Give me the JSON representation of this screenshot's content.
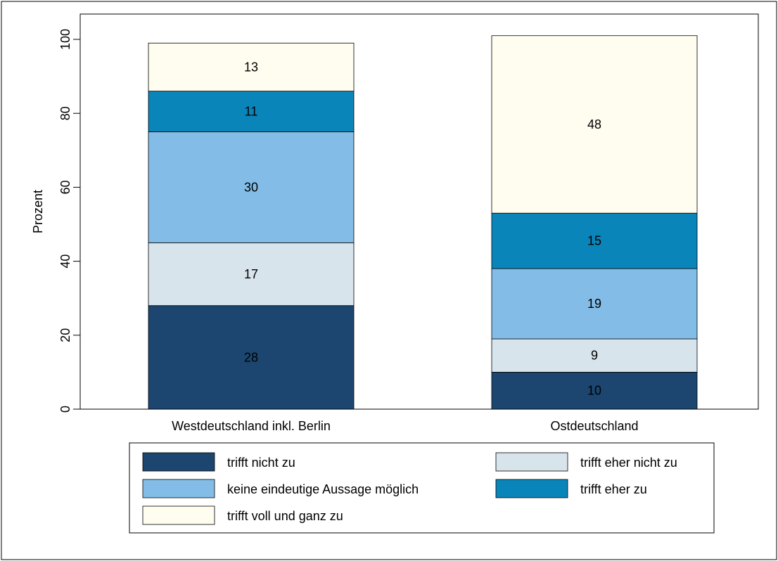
{
  "chart_data": {
    "type": "bar",
    "stacked": true,
    "title": "",
    "xlabel": "",
    "ylabel": "Prozent",
    "ylim": [
      0,
      100
    ],
    "yticks": [
      0,
      20,
      40,
      60,
      80,
      100
    ],
    "ytick_labels": [
      "0",
      "20",
      "40",
      "60",
      "80",
      "100"
    ],
    "grid": false,
    "legend_position": "bottom",
    "categories": [
      "Westdeutschland inkl. Berlin",
      "Ostdeutschland"
    ],
    "series": [
      {
        "name": "trifft nicht zu",
        "color": "#1c4670",
        "values": [
          28,
          10
        ],
        "labels": [
          "28",
          "10"
        ]
      },
      {
        "name": "trifft eher nicht zu",
        "color": "#d8e4ec",
        "values": [
          17,
          9
        ],
        "labels": [
          "17",
          "9"
        ]
      },
      {
        "name": "keine eindeutige Aussage möglich",
        "color": "#83bde7",
        "values": [
          30,
          19
        ],
        "labels": [
          "30",
          "19"
        ]
      },
      {
        "name": "trifft eher zu",
        "color": "#0a85ba",
        "values": [
          11,
          15
        ],
        "labels": [
          "11",
          "15"
        ]
      },
      {
        "name": "trifft voll und ganz zu",
        "color": "#fffcf0",
        "values": [
          13,
          48
        ],
        "labels": [
          "13",
          "48"
        ]
      }
    ]
  }
}
